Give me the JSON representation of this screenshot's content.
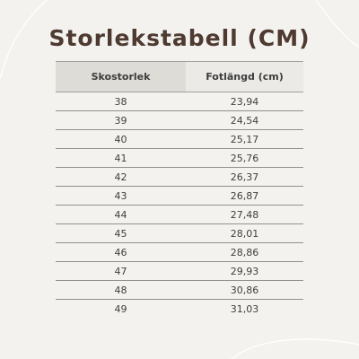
{
  "title": "Storlekstabell (CM)",
  "table": {
    "headers": [
      "Skostorlek",
      "Fotlängd (cm)"
    ],
    "rows": [
      [
        "38",
        "23,94"
      ],
      [
        "39",
        "24,54"
      ],
      [
        "40",
        "25,17"
      ],
      [
        "41",
        "25,76"
      ],
      [
        "42",
        "26,37"
      ],
      [
        "43",
        "26,87"
      ],
      [
        "44",
        "27,48"
      ],
      [
        "45",
        "28,01"
      ],
      [
        "46",
        "28,86"
      ],
      [
        "47",
        "29,93"
      ],
      [
        "48",
        "30,86"
      ],
      [
        "49",
        "31,03"
      ]
    ]
  },
  "colors": {
    "background": "#f3f2ee",
    "title": "#4e3a30",
    "header_col1": "#dedcd6",
    "header_col2": "#ebeae6",
    "rule": "#909090"
  }
}
